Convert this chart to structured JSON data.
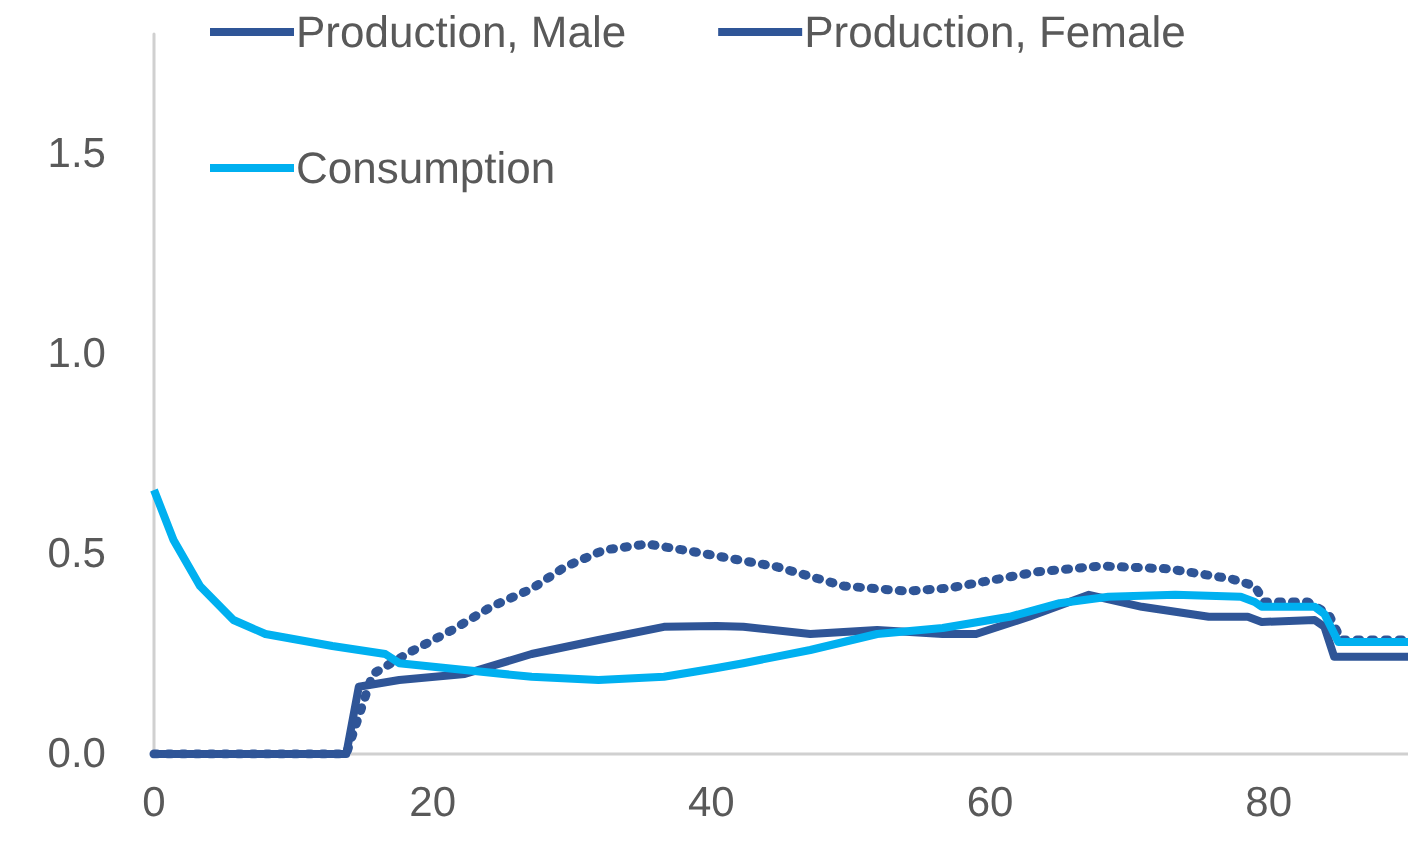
{
  "chart_data": {
    "type": "line",
    "xlim": [
      0,
      90
    ],
    "xticks": [
      0,
      20,
      40,
      60,
      80
    ],
    "ylim": [
      0,
      1.8
    ],
    "yticks": [
      {
        "value": 0,
        "label": "0.0"
      },
      {
        "value": 0.5,
        "label": "0.5"
      },
      {
        "value": 1,
        "label": "1.0"
      },
      {
        "value": 1.5,
        "label": "1.5"
      }
    ],
    "grid": false,
    "legend": "top",
    "marker": "none",
    "series": [
      {
        "name": "Production, Male",
        "color": "#2f5597",
        "line_style": "solid",
        "x": [
          0,
          13.8,
          14.7,
          17.6,
          22.3,
          27.1,
          31.9,
          36.6,
          40.4,
          42.3,
          47.1,
          51.9,
          56.6,
          59,
          62.8,
          67.1,
          70.9,
          75.7,
          78.5,
          79.5,
          83.3,
          84,
          84.7,
          90
        ],
        "values": [
          0,
          0,
          0.168,
          0.185,
          0.2,
          0.25,
          0.285,
          0.318,
          0.32,
          0.318,
          0.3,
          0.31,
          0.3,
          0.3,
          0.343,
          0.398,
          0.368,
          0.343,
          0.343,
          0.33,
          0.335,
          0.318,
          0.243,
          0.243
        ]
      },
      {
        "name": "Production, Female",
        "color": "#2f5597",
        "line_style": "dotted",
        "x": [
          0,
          13.8,
          15.7,
          18.5,
          21.4,
          24.2,
          27.1,
          29.5,
          32.3,
          35.4,
          38.5,
          44.7,
          49.5,
          54,
          57.1,
          60.2,
          63.3,
          68,
          72.8,
          77.3,
          79,
          79.7,
          82.8,
          84.3,
          85.2,
          90
        ],
        "values": [
          0,
          0,
          0.2,
          0.257,
          0.31,
          0.368,
          0.413,
          0.468,
          0.51,
          0.525,
          0.507,
          0.468,
          0.42,
          0.407,
          0.415,
          0.435,
          0.455,
          0.47,
          0.463,
          0.438,
          0.42,
          0.38,
          0.38,
          0.35,
          0.285,
          0.285
        ]
      },
      {
        "name": "Consumption",
        "color": "#00b0f0",
        "line_style": "solid",
        "x": [
          0,
          1.4,
          3.3,
          5.7,
          8,
          12.8,
          16.6,
          17.6,
          22.3,
          27.1,
          31.9,
          36.6,
          40.4,
          42.3,
          47.1,
          51.9,
          56.6,
          61.4,
          65,
          68.5,
          73.3,
          78,
          79,
          79.5,
          83.3,
          84,
          85,
          90
        ],
        "values": [
          0.66,
          0.535,
          0.42,
          0.335,
          0.3,
          0.27,
          0.25,
          0.227,
          0.21,
          0.193,
          0.185,
          0.193,
          0.215,
          0.227,
          0.26,
          0.3,
          0.315,
          0.343,
          0.377,
          0.393,
          0.398,
          0.393,
          0.38,
          0.368,
          0.368,
          0.35,
          0.28,
          0.28
        ]
      }
    ]
  }
}
